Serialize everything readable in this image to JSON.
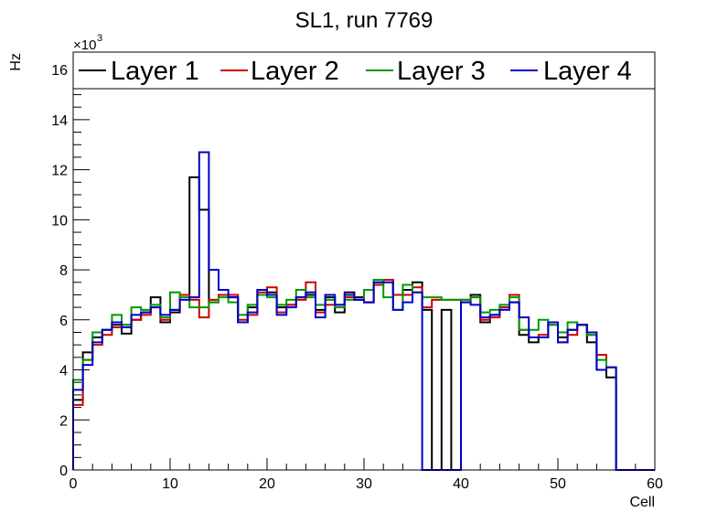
{
  "chart_data": {
    "type": "histogram",
    "title": "SL1, run 7769",
    "xlabel": "Cell",
    "ylabel": "Hz",
    "y_multiplier_base": "×10",
    "y_multiplier_exp": "3",
    "xlim": [
      0,
      60
    ],
    "ylim": [
      0,
      16.7
    ],
    "x_ticks": [
      0,
      10,
      20,
      30,
      40,
      50,
      60
    ],
    "y_ticks": [
      0,
      2,
      4,
      6,
      8,
      10,
      12,
      14,
      16
    ],
    "grid": false,
    "legend_position": "top",
    "bin_width": 1,
    "series": [
      {
        "name": "Layer 1",
        "color": "#000000",
        "values": [
          2.8,
          4.7,
          5.3,
          5.6,
          5.8,
          5.45,
          6.0,
          6.3,
          6.9,
          5.9,
          6.3,
          7.0,
          11.7,
          10.4,
          6.7,
          7.0,
          6.9,
          5.9,
          6.5,
          7.2,
          7.1,
          6.5,
          6.6,
          6.9,
          7.0,
          6.4,
          6.9,
          6.3,
          7.1,
          6.9,
          6.7,
          7.5,
          7.6,
          7.0,
          7.2,
          7.5,
          6.4,
          0.0,
          6.4,
          0.0,
          6.8,
          7.0,
          5.9,
          6.2,
          6.5,
          6.7,
          5.4,
          5.1,
          5.3,
          5.9,
          5.3,
          5.6,
          5.8,
          5.1,
          4.0,
          3.7,
          0,
          0,
          0,
          0
        ]
      },
      {
        "name": "Layer 2",
        "color": "#cc0000",
        "values": [
          2.6,
          4.4,
          5.0,
          5.4,
          5.7,
          5.8,
          6.0,
          6.2,
          6.5,
          6.0,
          6.4,
          7.0,
          6.8,
          6.1,
          6.8,
          7.0,
          7.0,
          6.0,
          6.2,
          7.1,
          7.3,
          6.3,
          6.6,
          6.8,
          7.5,
          6.3,
          6.6,
          6.6,
          6.9,
          6.8,
          6.7,
          7.4,
          7.6,
          7.0,
          7.0,
          7.3,
          6.5,
          6.8,
          6.8,
          6.8,
          6.7,
          6.9,
          6.0,
          6.1,
          6.5,
          7.0,
          5.6,
          5.3,
          5.4,
          5.8,
          5.1,
          5.4,
          5.8,
          5.4,
          4.6,
          4.1,
          0,
          0,
          0,
          0
        ]
      },
      {
        "name": "Layer 3",
        "color": "#009900",
        "values": [
          3.6,
          4.4,
          5.5,
          5.6,
          6.2,
          5.8,
          6.5,
          6.4,
          6.6,
          6.1,
          7.1,
          6.9,
          6.5,
          6.5,
          6.7,
          6.9,
          6.7,
          6.2,
          6.6,
          7.0,
          6.9,
          6.6,
          6.8,
          7.2,
          6.9,
          6.6,
          6.8,
          6.5,
          6.8,
          6.8,
          7.2,
          7.6,
          6.9,
          6.4,
          7.4,
          7.1,
          6.9,
          6.9,
          6.8,
          6.8,
          6.8,
          6.9,
          6.3,
          6.4,
          6.6,
          6.9,
          5.6,
          5.6,
          6.0,
          5.8,
          5.5,
          5.9,
          5.8,
          5.4,
          4.4,
          4.1,
          0,
          0,
          0,
          0
        ]
      },
      {
        "name": "Layer 4",
        "color": "#0000cc",
        "values": [
          3.2,
          4.2,
          5.1,
          5.6,
          5.9,
          5.7,
          6.2,
          6.3,
          6.5,
          6.2,
          6.4,
          6.8,
          6.9,
          12.7,
          8.0,
          7.2,
          6.9,
          5.9,
          6.3,
          7.2,
          7.0,
          6.2,
          6.5,
          6.9,
          7.1,
          6.1,
          7.0,
          6.6,
          7.0,
          6.8,
          6.7,
          7.5,
          7.5,
          6.4,
          6.7,
          7.1,
          0.0,
          0.0,
          0.0,
          0.0,
          6.7,
          6.6,
          6.1,
          6.2,
          6.4,
          6.7,
          6.1,
          5.3,
          5.3,
          5.9,
          5.1,
          5.6,
          5.8,
          5.5,
          4.0,
          4.1,
          0,
          0,
          0,
          0
        ]
      }
    ]
  }
}
